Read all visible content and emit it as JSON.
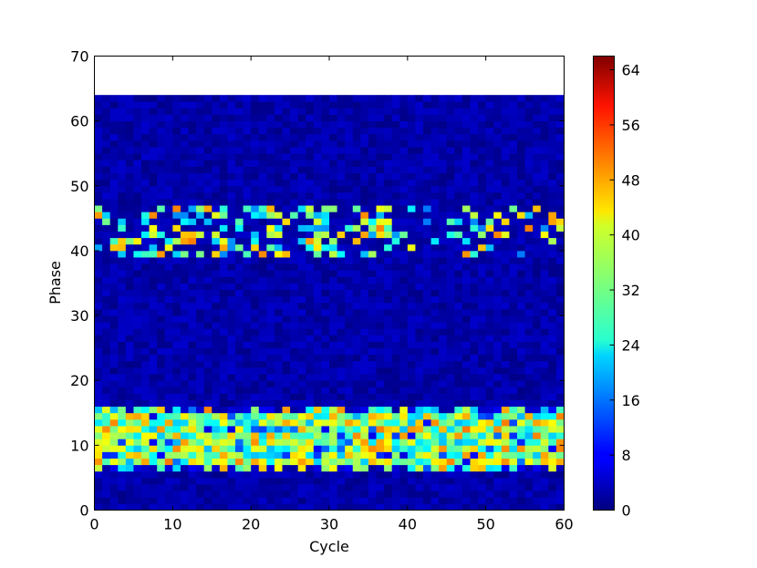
{
  "chart_data": {
    "type": "heatmap",
    "title": "",
    "xlabel": "Cycle",
    "ylabel": "Phase",
    "xlim": [
      0,
      60
    ],
    "ylim": [
      0,
      70
    ],
    "x_ticks": [
      "0",
      "10",
      "20",
      "30",
      "40",
      "50",
      "60"
    ],
    "y_ticks": [
      "0",
      "10",
      "20",
      "30",
      "40",
      "50",
      "60",
      "70"
    ],
    "grid": false,
    "colormap": "jet",
    "colorbar": {
      "range": [
        0,
        66
      ],
      "ticks": [
        "0",
        "8",
        "16",
        "24",
        "32",
        "40",
        "48",
        "56",
        "64"
      ]
    },
    "grid_shape": {
      "cycles": 60,
      "phases": 64
    },
    "bands": [
      {
        "phase_range": [
          0,
          6
        ],
        "typical_value": 3
      },
      {
        "phase_range": [
          6,
          16
        ],
        "typical_value": 34
      },
      {
        "phase_range": [
          16,
          39
        ],
        "typical_value": 3
      },
      {
        "phase_range": [
          39,
          47
        ],
        "typical_value": 28
      },
      {
        "phase_range": [
          47,
          64
        ],
        "typical_value": 3
      }
    ]
  }
}
